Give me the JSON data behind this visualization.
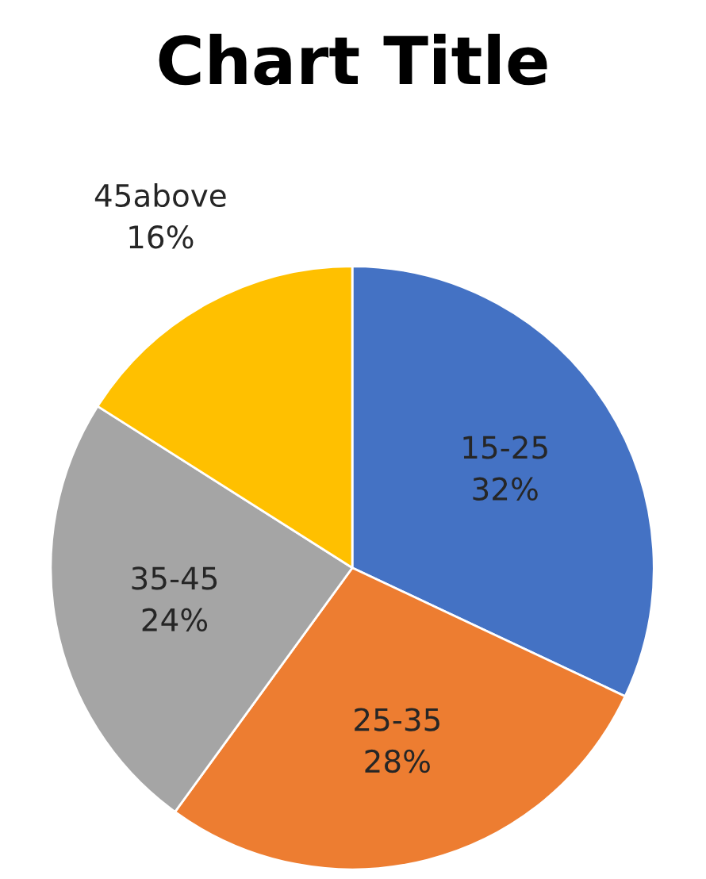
{
  "chart_data": {
    "type": "pie",
    "title": "Chart Title",
    "categories": [
      "15-25",
      "25-35",
      "35-45",
      "45above"
    ],
    "values": [
      32,
      28,
      24,
      16
    ],
    "colors": [
      "#4472c4",
      "#ed7d31",
      "#a5a5a5",
      "#ffc000"
    ],
    "value_labels": [
      "32%",
      "28%",
      "24%",
      "16%"
    ],
    "legend": false
  }
}
